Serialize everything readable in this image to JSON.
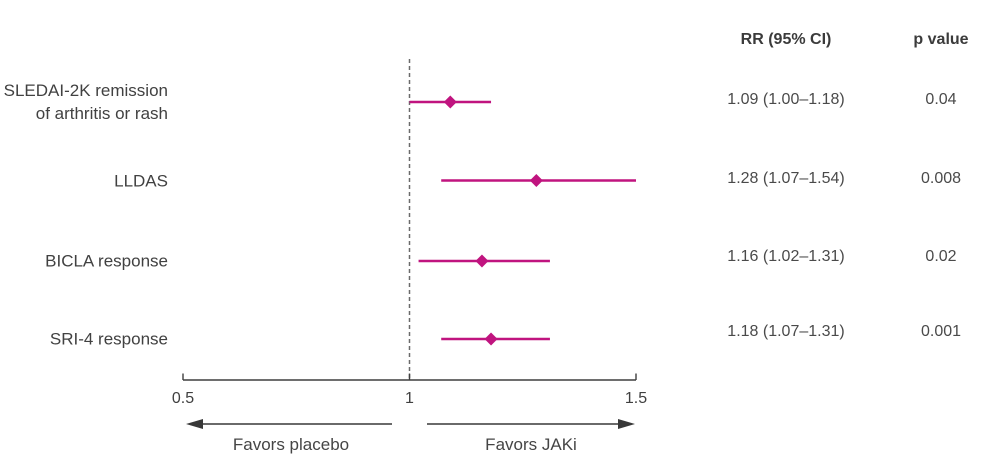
{
  "chart_data": {
    "type": "forest",
    "title": "",
    "columns": {
      "rr_header": "RR (95% CI)",
      "p_header": "p value"
    },
    "rows": [
      {
        "label_lines": [
          "SLEDAI-2K remission",
          "of arthritis or rash"
        ],
        "rr": 1.09,
        "ci_low": 1.0,
        "ci_high": 1.18,
        "rr_text": "1.09 (1.00–1.18)",
        "p_text": "0.04"
      },
      {
        "label_lines": [
          "LLDAS"
        ],
        "rr": 1.28,
        "ci_low": 1.07,
        "ci_high": 1.54,
        "rr_text": "1.28 (1.07–1.54)",
        "p_text": "0.008"
      },
      {
        "label_lines": [
          "BICLA response"
        ],
        "rr": 1.16,
        "ci_low": 1.02,
        "ci_high": 1.31,
        "rr_text": "1.16 (1.02–1.31)",
        "p_text": "0.02"
      },
      {
        "label_lines": [
          "SRI-4 response"
        ],
        "rr": 1.18,
        "ci_low": 1.07,
        "ci_high": 1.31,
        "rr_text": "1.18 (1.07–1.31)",
        "p_text": "0.001"
      }
    ],
    "axis": {
      "xlim": [
        0.5,
        1.5
      ],
      "ticks": [
        0.5,
        1,
        1.5
      ],
      "tick_labels": [
        "0.5",
        "1",
        "1.5"
      ],
      "reference_line": 1,
      "grid": false
    },
    "annotations": {
      "left_arrow_label": "Favors placebo",
      "right_arrow_label": "Favors JAKi"
    },
    "colors": {
      "marker": "#c0147f",
      "ci_line": "#c0147f",
      "reference_line": "#6b6b6b",
      "axis": "#3f3f3f",
      "arrow": "#383838",
      "text": "#414141"
    }
  }
}
